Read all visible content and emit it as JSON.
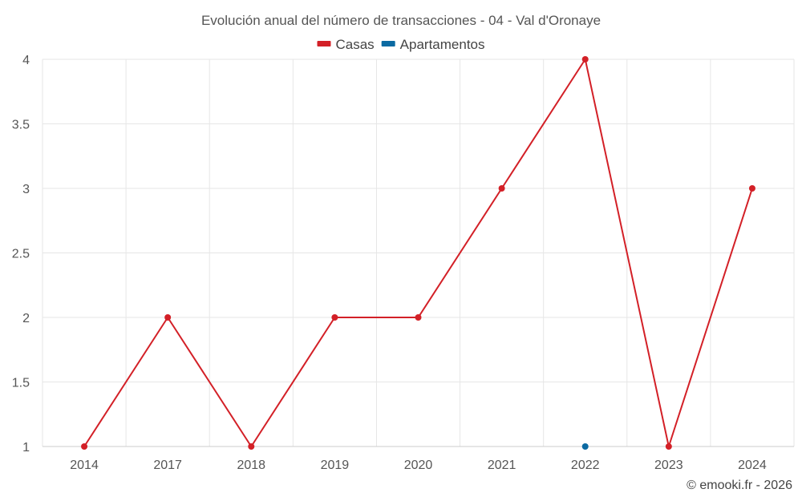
{
  "chart_data": {
    "type": "line",
    "title": "Evolución anual del número de transacciones - 04 - Val d'Oronaye",
    "categories": [
      "2014",
      "2017",
      "2018",
      "2019",
      "2020",
      "2021",
      "2022",
      "2023",
      "2024"
    ],
    "series": [
      {
        "name": "Casas",
        "color": "#d32027",
        "values": [
          1,
          2,
          1,
          2,
          2,
          3,
          4,
          1,
          3
        ]
      },
      {
        "name": "Apartamentos",
        "color": "#0b6aa2",
        "values": [
          null,
          null,
          null,
          null,
          null,
          null,
          1,
          null,
          null
        ]
      }
    ],
    "y_ticks": [
      "1",
      "1.5",
      "2",
      "2.5",
      "3",
      "3.5",
      "4"
    ],
    "ylim": [
      1,
      4
    ],
    "grid": true,
    "legend_position": "top-center"
  },
  "credit": "© emooki.fr - 2026"
}
